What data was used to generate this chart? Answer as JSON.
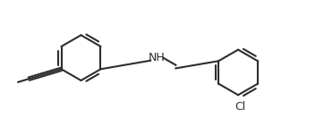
{
  "bg_color": "#ffffff",
  "line_color": "#2d2d2d",
  "line_width": 1.5,
  "text_color": "#2d2d2d",
  "nh_label": "NH",
  "cl_label": "Cl",
  "font_size": 9,
  "figsize": [
    3.62,
    1.51
  ],
  "dpi": 100
}
